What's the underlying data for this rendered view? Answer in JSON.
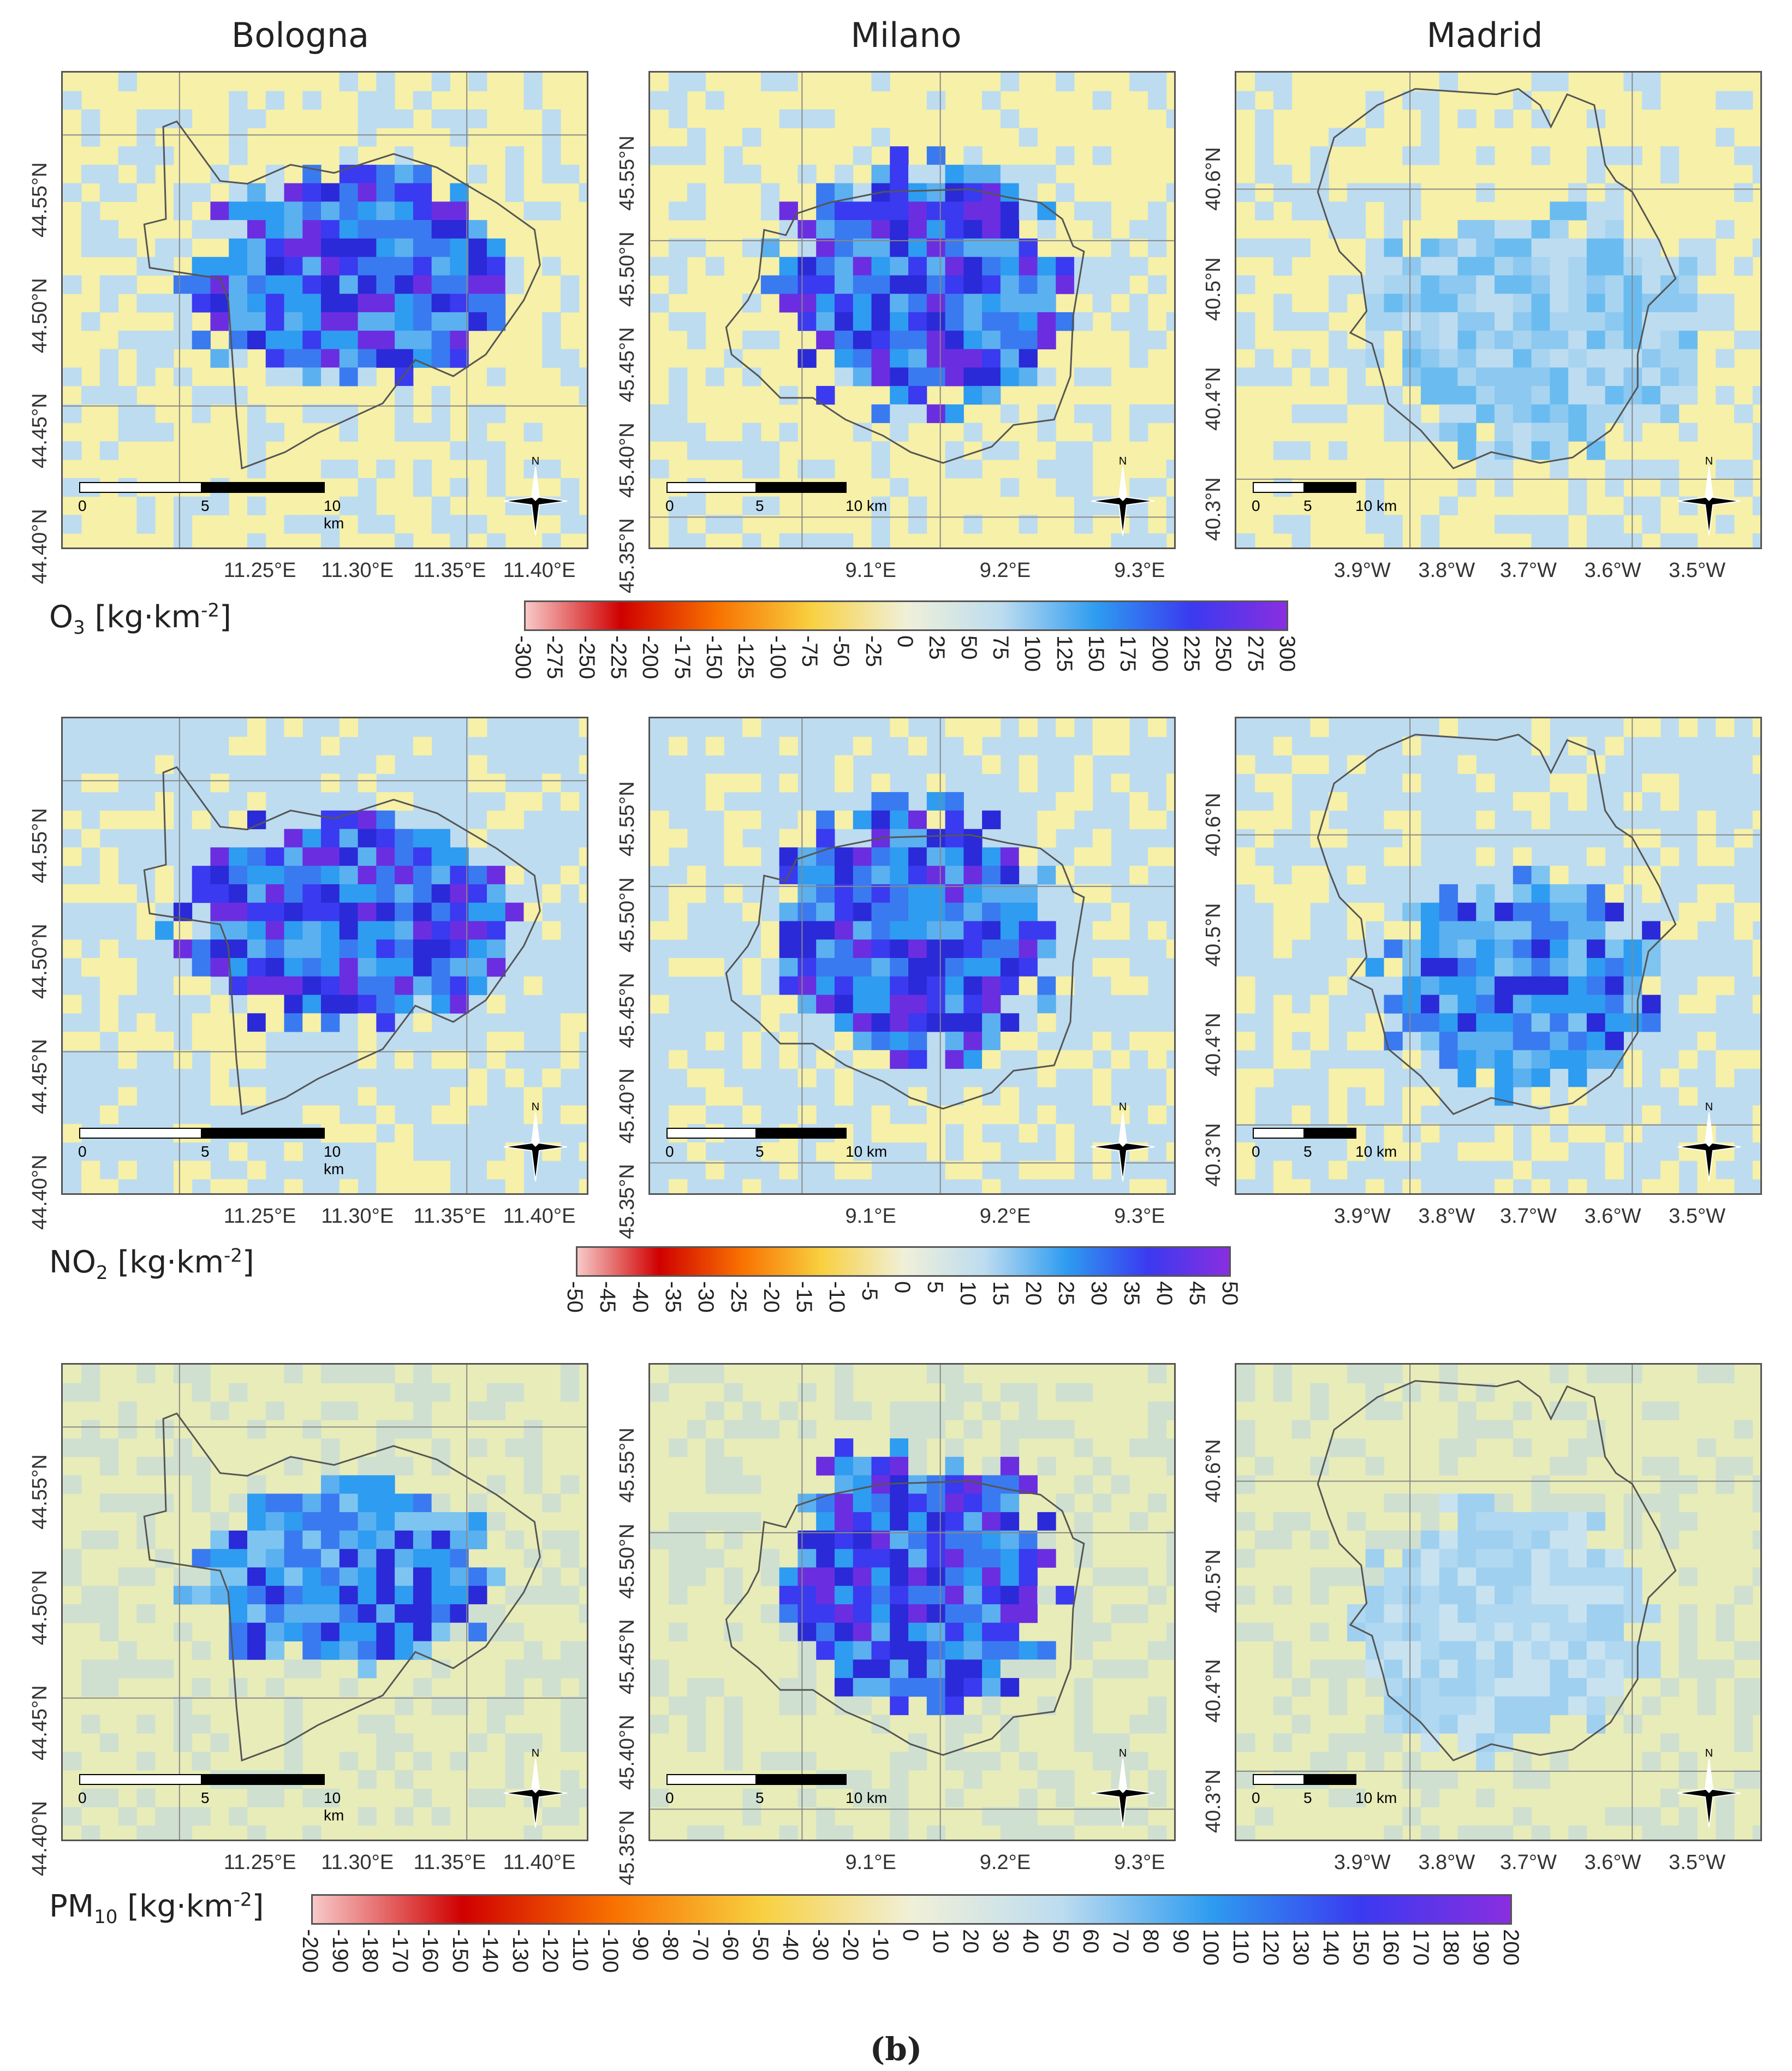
{
  "columns": [
    "Bologna",
    "Milano",
    "Madrid"
  ],
  "rows": [
    {
      "pollutant": {
        "main": "O",
        "sub": "3",
        "unit": " [kg·km",
        "sup": "-2",
        "end": "]"
      },
      "background": "#f6f0a8",
      "colorbar_ticks": [
        "-300",
        "-275",
        "-250",
        "-225",
        "-200",
        "-175",
        "-150",
        "-125",
        "-100",
        "-75",
        "-50",
        "-25",
        "0",
        "25",
        "50",
        "75",
        "100",
        "125",
        "150",
        "175",
        "200",
        "225",
        "250",
        "275",
        "300"
      ]
    },
    {
      "pollutant": {
        "main": "NO",
        "sub": "2",
        "unit": " [kg·km",
        "sup": "-2",
        "end": "]"
      },
      "background": "#bddcf0",
      "colorbar_ticks": [
        "-50",
        "-45",
        "-40",
        "-35",
        "-30",
        "-25",
        "-20",
        "-15",
        "-10",
        "-5",
        "0",
        "5",
        "10",
        "15",
        "20",
        "25",
        "30",
        "35",
        "40",
        "45",
        "50"
      ]
    },
    {
      "pollutant": {
        "main": "PM",
        "sub": "10",
        "unit": " [kg·km",
        "sup": "-2",
        "end": "]"
      },
      "background": "#e8ecb8",
      "colorbar_ticks": [
        "-200",
        "-190",
        "-180",
        "-170",
        "-160",
        "-150",
        "-140",
        "-130",
        "-120",
        "-110",
        "-100",
        "-90",
        "-80",
        "-70",
        "-60",
        "-50",
        "-40",
        "-30",
        "-20",
        "-10",
        "0",
        "10",
        "20",
        "30",
        "40",
        "50",
        "60",
        "70",
        "80",
        "90",
        "100",
        "110",
        "120",
        "130",
        "140",
        "150",
        "160",
        "170",
        "180",
        "190",
        "200"
      ]
    }
  ],
  "cities": {
    "Bologna": {
      "lat_labels": [
        "44.55°N",
        "44.50°N",
        "44.45°N",
        "44.40°N"
      ],
      "lon_labels": [
        "11.25°E",
        "11.30°E",
        "11.35°E",
        "11.40°E"
      ]
    },
    "Milano": {
      "lat_labels": [
        "45.55°N",
        "45.50°N",
        "45.45°N",
        "45.40°N",
        "45.35°N"
      ],
      "lon_labels": [
        "9.1°E",
        "9.2°E",
        "9.3°E"
      ]
    },
    "Madrid": {
      "lat_labels": [
        "40.6°N",
        "40.5°N",
        "40.4°N",
        "40.3°N"
      ],
      "lon_labels": [
        "3.9°W",
        "3.8°W",
        "3.7°W",
        "3.6°W",
        "3.5°W"
      ]
    }
  },
  "scalebar": {
    "zero": "0",
    "mid": "5",
    "end": "10 km"
  },
  "compass_label": "N",
  "caption": "(b)",
  "colors": {
    "neg_low": "#f8c8c8",
    "neg_high": "#d00000",
    "mid_neg": "#f8d040",
    "zero": "#f0f0d8",
    "pos_low": "#bddcf0",
    "pos_mid": "#2e9cf0",
    "pos_high": "#3a3af0",
    "pos_max": "#8a2ee0"
  }
}
